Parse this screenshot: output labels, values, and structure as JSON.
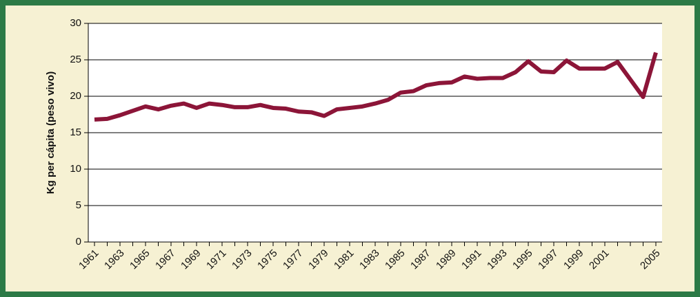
{
  "chart_data": {
    "type": "line",
    "y_label": "Kg per cápita (peso vivo)",
    "categories": [
      "1961",
      null,
      "1963",
      null,
      "1965",
      null,
      "1967",
      null,
      "1969",
      null,
      "1971",
      null,
      "1973",
      null,
      "1975",
      null,
      "1977",
      null,
      "1979",
      null,
      "1981",
      null,
      "1983",
      null,
      "1985",
      null,
      "1987",
      null,
      "1989",
      null,
      "1991",
      null,
      "1993",
      null,
      "1995",
      null,
      "1997",
      null,
      "1999",
      null,
      "2001",
      null,
      null,
      null,
      "2005"
    ],
    "series": [
      {
        "color": "#8c1538",
        "values": [
          16.8,
          16.9,
          17.4,
          18.0,
          18.6,
          18.2,
          18.7,
          19.0,
          18.4,
          19.0,
          18.8,
          18.5,
          18.5,
          18.8,
          18.4,
          18.3,
          17.9,
          17.8,
          17.3,
          18.2,
          18.4,
          18.6,
          19.0,
          19.5,
          20.5,
          20.7,
          21.5,
          21.8,
          21.9,
          22.7,
          22.4,
          22.5,
          22.5,
          23.3,
          24.8,
          23.4,
          23.3,
          24.9,
          23.8,
          23.8,
          23.8,
          24.7,
          22.3,
          19.9,
          26.0
        ]
      }
    ],
    "ylim": [
      0,
      30
    ],
    "yticks": [
      0,
      5,
      10,
      15,
      20,
      25,
      30
    ],
    "grid": true
  }
}
